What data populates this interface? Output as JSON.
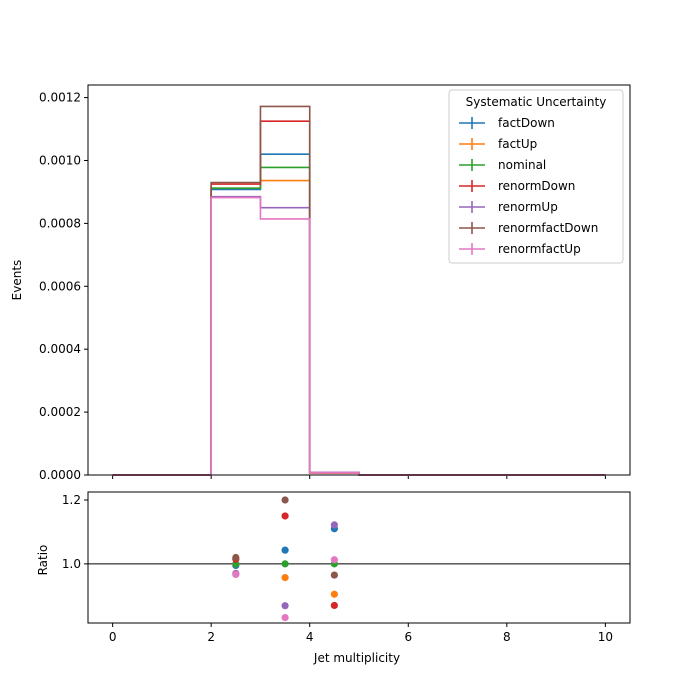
{
  "chart_data": [
    {
      "type": "histogram-step",
      "ylabel": "Events",
      "bin_edges": [
        0,
        1,
        2,
        3,
        4,
        5,
        6,
        7,
        8,
        9,
        10
      ],
      "xlim": [
        -0.5,
        10.5
      ],
      "ylim": [
        0,
        0.00124
      ],
      "yticks": [
        0,
        0.0002,
        0.0004,
        0.0006,
        0.0008,
        0.001,
        0.0012
      ],
      "ytick_labels": [
        "0.0000",
        "0.0002",
        "0.0004",
        "0.0006",
        "0.0008",
        "0.0010",
        "0.0012"
      ],
      "legend": {
        "title": "Systematic Uncertainty",
        "placement": "upper right"
      },
      "series": [
        {
          "name": "factDown",
          "color": "#1f77b4",
          "values": [
            0,
            0,
            0.000908,
            0.00102,
            8.5e-06,
            0,
            0,
            0,
            0,
            0
          ]
        },
        {
          "name": "factUp",
          "color": "#ff7f0e",
          "values": [
            0,
            0,
            0.000912,
            0.000936,
            6.8e-06,
            0,
            0,
            0,
            0,
            0
          ]
        },
        {
          "name": "nominal",
          "color": "#2ca02c",
          "values": [
            0,
            0,
            0.000912,
            0.000978,
            7.5e-06,
            0,
            0,
            0,
            0,
            0
          ]
        },
        {
          "name": "renormDown",
          "color": "#d62728",
          "values": [
            0,
            0,
            0.000925,
            0.001125,
            6.5e-06,
            0,
            0,
            0,
            0,
            0
          ]
        },
        {
          "name": "renormUp",
          "color": "#9467bd",
          "values": [
            0,
            0,
            0.000885,
            0.00085,
            8.4e-06,
            0,
            0,
            0,
            0,
            0
          ]
        },
        {
          "name": "renormfactDown",
          "color": "#8c564b",
          "values": [
            0,
            0,
            0.00093,
            0.001172,
            7.2e-06,
            0,
            0,
            0,
            0,
            0
          ]
        },
        {
          "name": "renormfactUp",
          "color": "#e377c2",
          "values": [
            0,
            0,
            0.000882,
            0.000814,
            7.6e-06,
            0,
            0,
            0,
            0,
            0
          ]
        }
      ]
    },
    {
      "type": "scatter",
      "xlabel": "Jet multiplicity",
      "ylabel": "Ratio",
      "xlim": [
        -0.5,
        10.5
      ],
      "ylim": [
        0.815,
        1.225
      ],
      "xticks": [
        0,
        2,
        4,
        6,
        8,
        10
      ],
      "xtick_labels": [
        "0",
        "2",
        "4",
        "6",
        "8",
        "10"
      ],
      "yticks": [
        1.0,
        1.2
      ],
      "ytick_labels": [
        "1.0",
        "1.2"
      ],
      "reference_line": 1.0,
      "x": [
        2.5,
        3.5,
        4.5
      ],
      "series": [
        {
          "name": "factDown",
          "color": "#1f77b4",
          "values": [
            0.995,
            1.043,
            1.11
          ]
        },
        {
          "name": "factUp",
          "color": "#ff7f0e",
          "values": [
            1.0,
            0.957,
            0.905
          ]
        },
        {
          "name": "nominal",
          "color": "#2ca02c",
          "values": [
            1.0,
            1.0,
            1.0
          ]
        },
        {
          "name": "renormDown",
          "color": "#d62728",
          "values": [
            1.015,
            1.15,
            0.87
          ]
        },
        {
          "name": "renormUp",
          "color": "#9467bd",
          "values": [
            0.97,
            0.869,
            1.122
          ]
        },
        {
          "name": "renormfactDown",
          "color": "#8c564b",
          "values": [
            1.02,
            1.2,
            0.965
          ]
        },
        {
          "name": "renormfactUp",
          "color": "#e377c2",
          "values": [
            0.967,
            0.832,
            1.013
          ]
        }
      ]
    }
  ]
}
